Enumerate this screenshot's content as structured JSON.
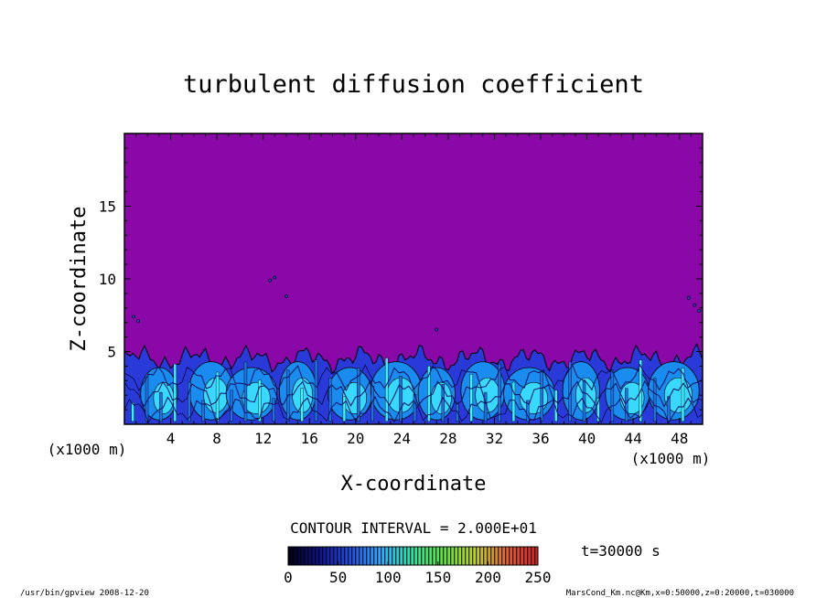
{
  "chart_data": {
    "type": "heatmap",
    "title": "turbulent diffusion coefficient",
    "xlabel": "X-coordinate",
    "ylabel": "Z-coordinate",
    "x_unit_left": "(x1000 m)",
    "x_unit_right": "(x1000 m)",
    "xlim": [
      0,
      50
    ],
    "ylim": [
      0,
      20
    ],
    "x_ticks": [
      "4",
      "8",
      "12",
      "16",
      "20",
      "24",
      "28",
      "32",
      "36",
      "40",
      "44",
      "48"
    ],
    "y_ticks": [
      "5",
      "10",
      "15"
    ],
    "contour_interval": "CONTOUR INTERVAL = 2.000E+01",
    "colorbar": {
      "ticks": [
        "0",
        "50",
        "100",
        "150",
        "200",
        "250"
      ],
      "range": [
        0,
        250
      ]
    },
    "time_label": "t=30000 s",
    "boundary_layer_top_km": 4.5,
    "field_description_values": {
      "background_value": 0,
      "max_value": 250
    }
  },
  "footer": {
    "left": "/usr/bin/gpview   2008-12-20",
    "right": "MarsCond_Km.nc@Km,x=0:50000,z=0:20000,t=030000"
  },
  "colors": {
    "background_field": "#8a08a8",
    "low_turbulence": "#2030d0",
    "mid_turbulence": "#1890f0",
    "high_turbulence": "#30e8ff"
  }
}
